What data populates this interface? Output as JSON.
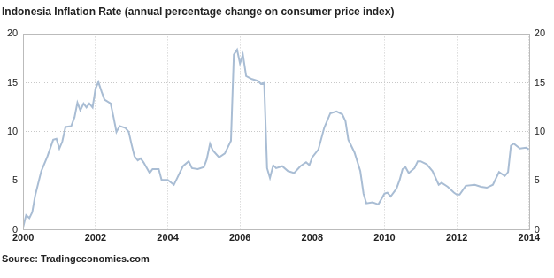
{
  "chart_data": {
    "type": "line",
    "title": "Indonesia Inflation Rate (annual percentage change on consumer price index)",
    "source": "Source: Tradingeconomics.com",
    "color": "#a9bdd4",
    "x": [
      2000.0,
      2000.08,
      2000.17,
      2000.25,
      2000.33,
      2000.5,
      2000.67,
      2000.83,
      2000.92,
      2001.0,
      2001.08,
      2001.17,
      2001.33,
      2001.42,
      2001.5,
      2001.58,
      2001.67,
      2001.75,
      2001.83,
      2001.92,
      2002.0,
      2002.08,
      2002.17,
      2002.25,
      2002.42,
      2002.5,
      2002.58,
      2002.67,
      2002.83,
      2002.92,
      2003.0,
      2003.08,
      2003.17,
      2003.25,
      2003.33,
      2003.5,
      2003.58,
      2003.75,
      2003.83,
      2004.0,
      2004.17,
      2004.25,
      2004.42,
      2004.58,
      2004.67,
      2004.83,
      2005.0,
      2005.08,
      2005.17,
      2005.25,
      2005.42,
      2005.58,
      2005.75,
      2005.83,
      2005.92,
      2006.0,
      2006.08,
      2006.17,
      2006.33,
      2006.5,
      2006.58,
      2006.67,
      2006.75,
      2006.83,
      2006.92,
      2007.0,
      2007.17,
      2007.33,
      2007.5,
      2007.67,
      2007.83,
      2007.92,
      2008.0,
      2008.17,
      2008.33,
      2008.5,
      2008.67,
      2008.83,
      2008.92,
      2009.0,
      2009.17,
      2009.33,
      2009.42,
      2009.5,
      2009.67,
      2009.83,
      2010.0,
      2010.08,
      2010.17,
      2010.33,
      2010.42,
      2010.5,
      2010.58,
      2010.67,
      2010.83,
      2010.92,
      2011.0,
      2011.17,
      2011.33,
      2011.5,
      2011.58,
      2011.75,
      2011.92,
      2012.0,
      2012.08,
      2012.25,
      2012.5,
      2012.67,
      2012.83,
      2013.0,
      2013.17,
      2013.33,
      2013.42,
      2013.5,
      2013.58,
      2013.75,
      2013.92,
      2014.0
    ],
    "values": [
      0.3,
      1.5,
      1.2,
      1.8,
      3.5,
      6.0,
      7.5,
      9.2,
      9.3,
      8.3,
      9.0,
      10.5,
      10.6,
      11.5,
      13.0,
      12.2,
      12.9,
      12.5,
      12.9,
      12.5,
      14.4,
      15.1,
      14.1,
      13.3,
      12.9,
      11.5,
      10.0,
      10.6,
      10.4,
      10.0,
      8.7,
      7.5,
      7.1,
      7.3,
      6.9,
      5.8,
      6.2,
      6.2,
      5.1,
      5.1,
      4.6,
      5.2,
      6.5,
      7.0,
      6.3,
      6.2,
      6.4,
      7.2,
      8.8,
      8.1,
      7.4,
      7.8,
      9.1,
      17.9,
      18.4,
      17.0,
      17.9,
      15.7,
      15.4,
      15.2,
      14.9,
      15.0,
      6.3,
      5.3,
      6.6,
      6.3,
      6.5,
      6.0,
      5.8,
      6.5,
      6.9,
      6.6,
      7.4,
      8.2,
      10.4,
      11.9,
      12.1,
      11.8,
      11.1,
      9.2,
      7.9,
      6.0,
      3.7,
      2.7,
      2.8,
      2.6,
      3.7,
      3.8,
      3.4,
      4.2,
      5.1,
      6.2,
      6.4,
      5.8,
      6.3,
      7.0,
      7.0,
      6.7,
      6.0,
      4.6,
      4.8,
      4.4,
      3.8,
      3.6,
      3.6,
      4.5,
      4.6,
      4.4,
      4.3,
      4.6,
      5.9,
      5.5,
      5.9,
      8.6,
      8.8,
      8.3,
      8.4,
      8.2
    ],
    "xlim": [
      2000,
      2014
    ],
    "xticks": [
      2000,
      2002,
      2004,
      2006,
      2008,
      2010,
      2012,
      2014
    ],
    "ylim": [
      0,
      20
    ],
    "yticks": [
      0,
      5,
      10,
      15,
      20
    ],
    "y2lim": [
      0,
      20
    ],
    "y2ticks": [
      0,
      5,
      10,
      15,
      20
    ],
    "grid": true
  }
}
